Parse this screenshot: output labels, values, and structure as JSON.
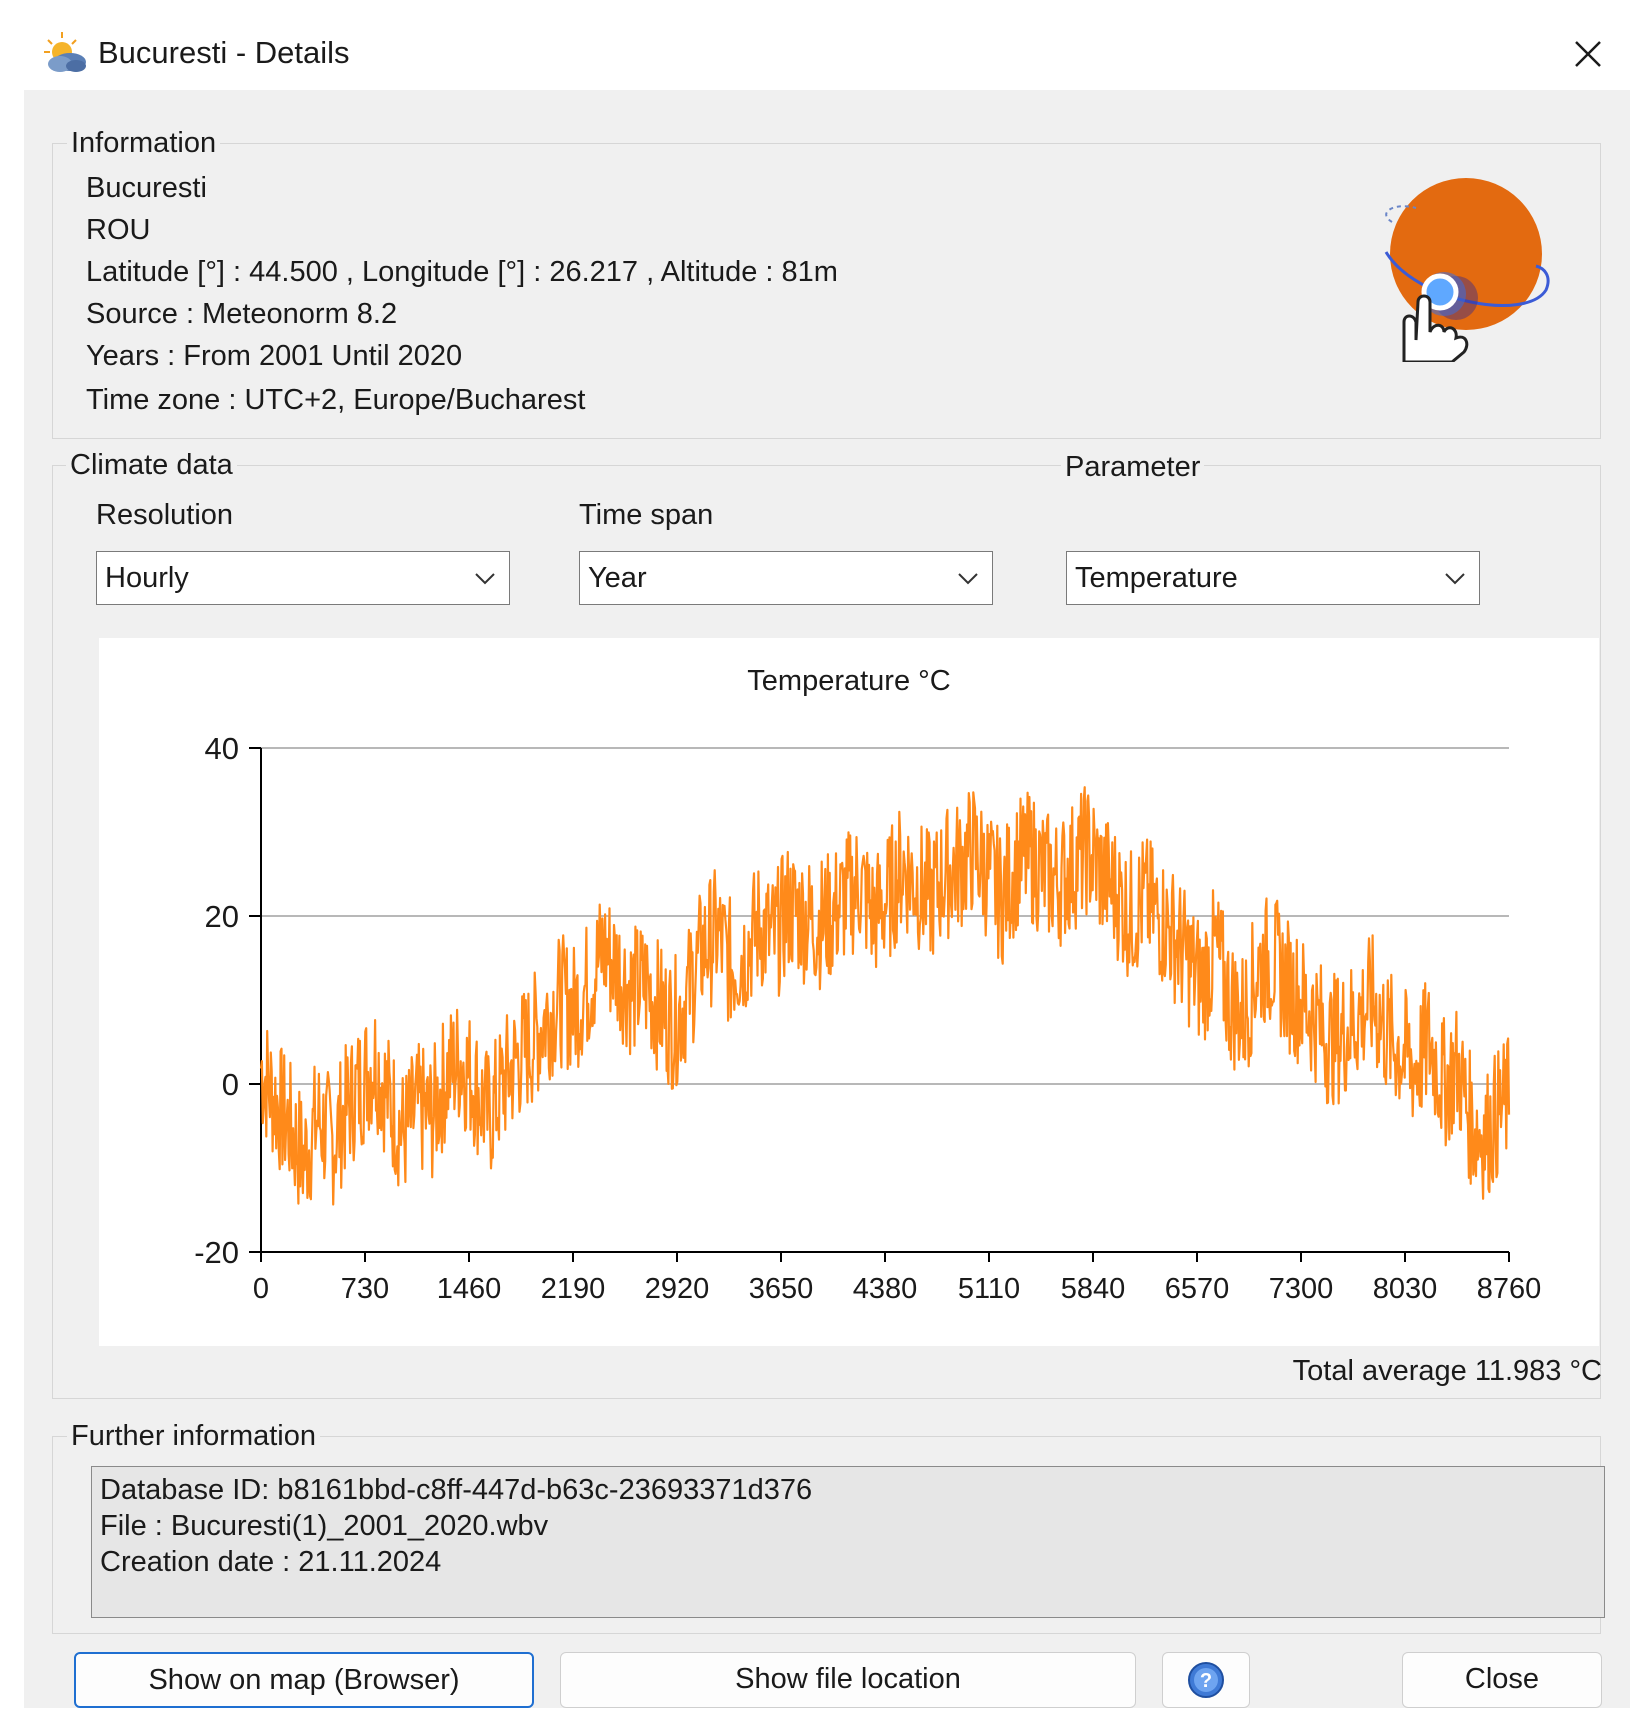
{
  "window": {
    "title": "Bucuresti - Details"
  },
  "information": {
    "legend": "Information",
    "lines": [
      "Bucuresti",
      "ROU",
      "Latitude [°] : 44.500 , Longitude [°] : 26.217 , Altitude : 81m",
      "Source : Meteonorm 8.2",
      "Years : From 2001 Until 2020",
      "Time zone : UTC+2, Europe/Bucharest"
    ]
  },
  "climate": {
    "legend": "Climate data",
    "parameter_legend": "Parameter",
    "resolution": {
      "label": "Resolution",
      "value": "Hourly"
    },
    "time_span": {
      "label": "Time span",
      "value": "Year"
    },
    "parameter": {
      "value": "Temperature"
    },
    "total_average": "Total average 11.983 °C"
  },
  "chart_data": {
    "type": "line",
    "title": "Temperature °C",
    "xlabel": "",
    "ylabel": "",
    "xlim": [
      0,
      8760
    ],
    "ylim": [
      -20,
      40
    ],
    "x_ticks": [
      "0",
      "730",
      "1460",
      "2190",
      "2920",
      "3650",
      "4380",
      "5110",
      "5840",
      "6570",
      "7300",
      "8030",
      "8760"
    ],
    "y_ticks": [
      "40",
      "20",
      "0",
      "-20"
    ],
    "grid": true,
    "series": [
      {
        "color": "#ff8a1a",
        "x": [
          0,
          100,
          200,
          300,
          400,
          500,
          600,
          700,
          800,
          900,
          1000,
          1100,
          1200,
          1300,
          1400,
          1500,
          1600,
          1700,
          1800,
          1900,
          2000,
          2100,
          2200,
          2300,
          2400,
          2500,
          2600,
          2700,
          2800,
          2900,
          3000,
          3100,
          3200,
          3300,
          3400,
          3500,
          3600,
          3700,
          3800,
          3900,
          4000,
          4100,
          4200,
          4300,
          4400,
          4500,
          4600,
          4700,
          4800,
          4900,
          5000,
          5100,
          5200,
          5300,
          5400,
          5500,
          5600,
          5700,
          5800,
          5900,
          6000,
          6100,
          6200,
          6300,
          6400,
          6500,
          6600,
          6700,
          6800,
          6900,
          7000,
          7100,
          7200,
          7300,
          7400,
          7500,
          7600,
          7700,
          7800,
          7900,
          8000,
          8100,
          8200,
          8300,
          8400,
          8500,
          8600,
          8700,
          8760
        ],
        "y": [
          2,
          -2,
          -5,
          -9,
          -4,
          -7,
          -3,
          0,
          3,
          -2,
          -6,
          -3,
          -4,
          1,
          3,
          0,
          -4,
          0,
          3,
          5,
          8,
          10,
          9,
          12,
          16,
          14,
          11,
          12,
          9,
          7,
          11,
          16,
          18,
          14,
          16,
          19,
          17,
          21,
          20,
          19,
          20,
          22,
          24,
          20,
          22,
          26,
          24,
          22,
          25,
          26,
          28,
          25,
          22,
          26,
          27,
          25,
          24,
          26,
          28,
          25,
          23,
          20,
          22,
          20,
          18,
          15,
          12,
          16,
          10,
          8,
          14,
          15,
          12,
          10,
          8,
          5,
          6,
          8,
          10,
          6,
          4,
          2,
          5,
          0,
          2,
          -5,
          -6,
          -3,
          -2
        ]
      }
    ]
  },
  "further": {
    "legend": "Further information",
    "lines": [
      "Database ID: b8161bbd-c8ff-447d-b63c-23693371d376",
      "File : Bucuresti(1)_2001_2020.wbv",
      "Creation date : 21.11.2024"
    ]
  },
  "buttons": {
    "show_on_map": "Show on map (Browser)",
    "show_file_location": "Show file location",
    "close": "Close"
  }
}
